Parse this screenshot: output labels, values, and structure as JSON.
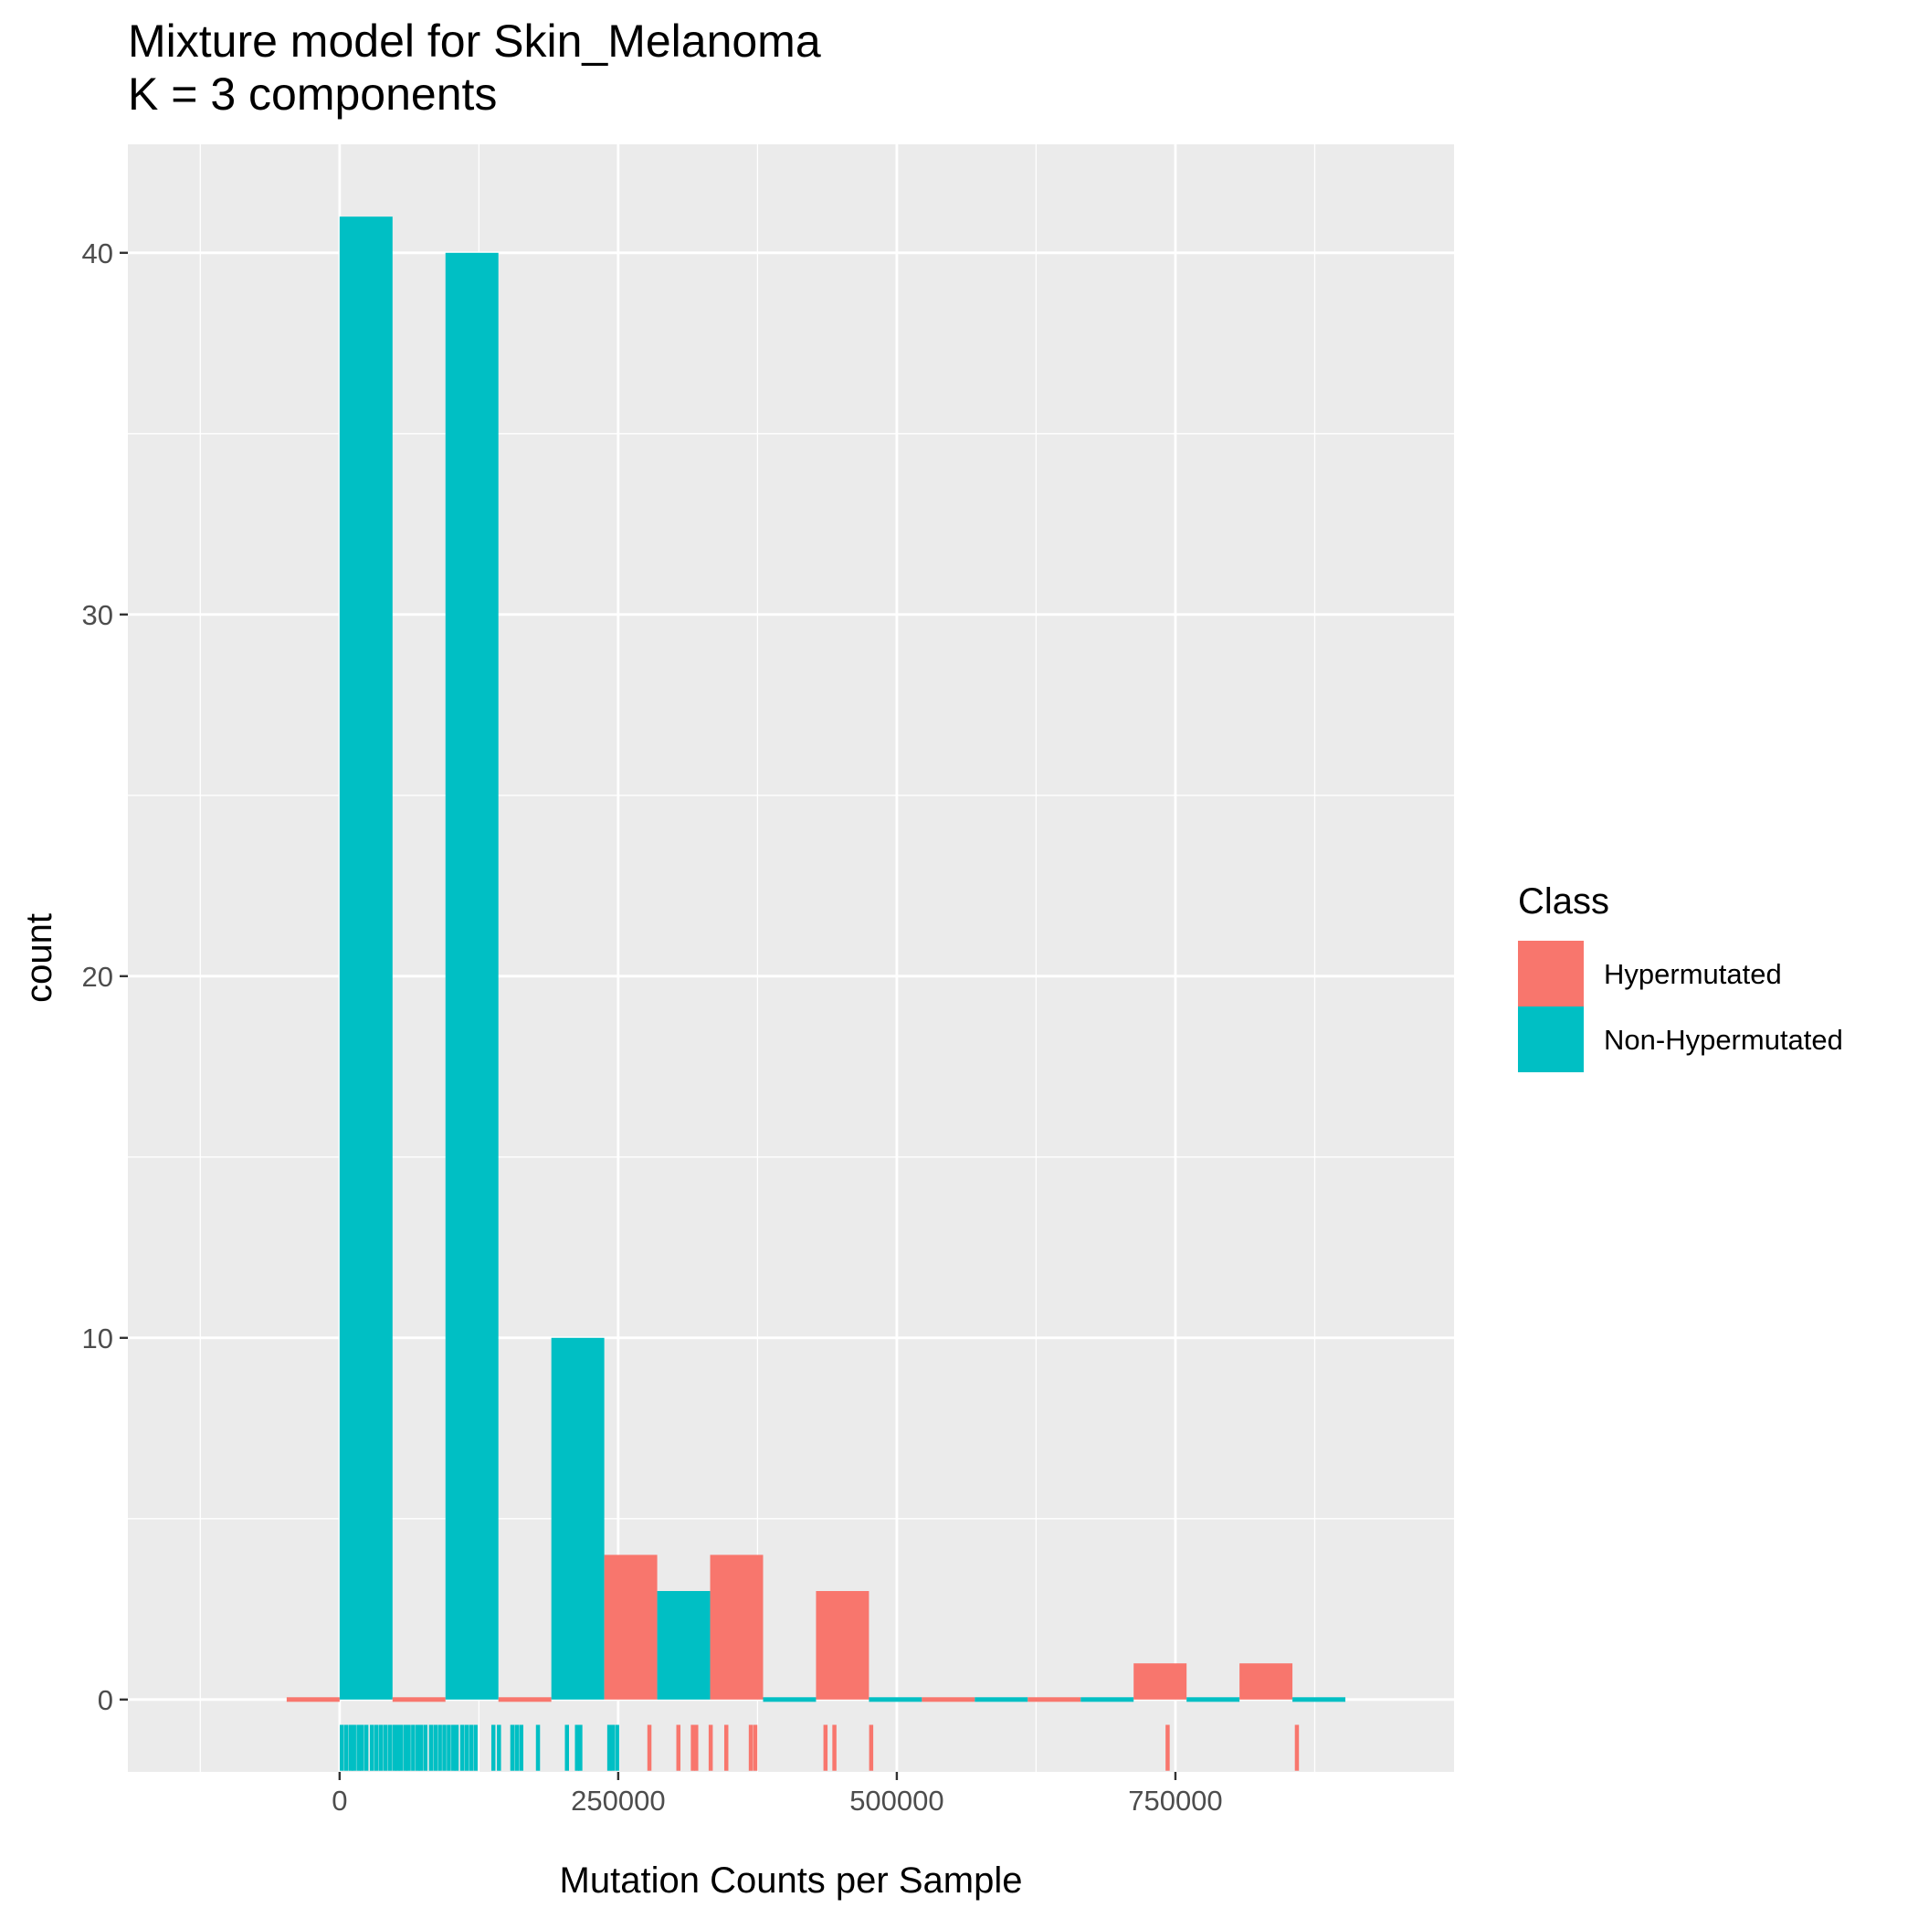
{
  "chart_data": {
    "type": "bar",
    "title": "Mixture model for Skin_Melanoma",
    "subtitle": "K = 3 components",
    "xlabel": "Mutation Counts per Sample",
    "ylabel": "count",
    "xlim": [
      -190000,
      1000000
    ],
    "ylim": [
      -2,
      43
    ],
    "x_ticks": [
      0,
      250000,
      500000,
      750000
    ],
    "x_tick_labels": [
      "0",
      "250000",
      "500000",
      "750000"
    ],
    "y_ticks": [
      0,
      10,
      20,
      30,
      40
    ],
    "y_tick_labels": [
      "0",
      "10",
      "20",
      "30",
      "40"
    ],
    "grid": true,
    "bin_centers": [
      0,
      95000,
      190000,
      285000,
      380000,
      475000,
      570000,
      665000,
      760000,
      855000
    ],
    "bin_width": 95000,
    "series": [
      {
        "name": "Hypermutated",
        "color": "#F8766D",
        "values": [
          0,
          0,
          0,
          4,
          4,
          3,
          0,
          0,
          1,
          1
        ]
      },
      {
        "name": "Non-Hypermutated",
        "color": "#00BFC4",
        "values": [
          41,
          40,
          10,
          3,
          0,
          0,
          0,
          0,
          0,
          0
        ]
      }
    ],
    "rug": {
      "Non-Hypermutated": [
        2000,
        6000,
        10000,
        13000,
        17000,
        20000,
        24000,
        29000,
        33000,
        37000,
        41000,
        45000,
        49000,
        52000,
        55000,
        59000,
        62000,
        66000,
        70000,
        73000,
        77000,
        82000,
        86000,
        90000,
        94000,
        98000,
        102000,
        105000,
        110000,
        114000,
        118000,
        122000,
        138000,
        143000,
        155000,
        159000,
        163000,
        178000,
        204000,
        213000,
        216000,
        242000,
        245000,
        249000
      ],
      "Hypermutated": [
        278000,
        304000,
        317000,
        320000,
        333000,
        347000,
        369000,
        373000,
        436000,
        444000,
        477000,
        743000,
        859000
      ]
    },
    "legend": {
      "title": "Class",
      "position": "right",
      "entries": [
        "Hypermutated",
        "Non-Hypermutated"
      ]
    }
  }
}
